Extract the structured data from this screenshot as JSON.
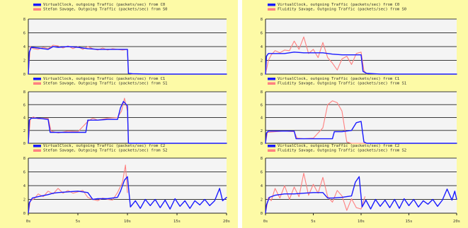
{
  "colors": {
    "panel_bg": "#fdfaa6",
    "plot_bg": "#f4f4f4",
    "blue": "#1a1aff",
    "red": "#ff8080"
  },
  "x_ticks": [
    "0s",
    "5s",
    "10s",
    "15s",
    "20s"
  ],
  "y_ticks": [
    "0",
    "2",
    "4",
    "6",
    "8"
  ],
  "chart_data": [
    {
      "type": "line",
      "xlim": [
        0,
        20
      ],
      "ylim": [
        0,
        8
      ],
      "legend": [
        "VirtualClock, outgoing Traffic (packets/sec) from C0",
        "Stefan Savage, Outgoing Traffic (packets/sec) from S0"
      ],
      "series": [
        {
          "name": "VirtualClock, outgoing Traffic (packets/sec) from C0",
          "color": "#1a1aff",
          "x": [
            0,
            0.1,
            0.3,
            1,
            2,
            2.5,
            3,
            4,
            5,
            6,
            7,
            8,
            9,
            10,
            10.1,
            10.5,
            12,
            14,
            16,
            18,
            20
          ],
          "y": [
            0,
            3.2,
            3.9,
            3.8,
            3.6,
            4.0,
            3.9,
            4.0,
            3.9,
            3.7,
            3.6,
            3.6,
            3.6,
            3.6,
            0.1,
            0.05,
            0,
            0,
            0,
            0,
            0
          ]
        },
        {
          "name": "Stefan Savage, Outgoing Traffic (packets/sec) from S0",
          "color": "#ff8080",
          "x": [
            0,
            0.2,
            0.5,
            1,
            1.5,
            2,
            2.5,
            3,
            3.5,
            4,
            4.5,
            5,
            5.5,
            6,
            6.5,
            7,
            7.5,
            8,
            8.5,
            9,
            9.5,
            10,
            10.1,
            10.5,
            11
          ],
          "y": [
            0,
            4.0,
            3.7,
            3.6,
            3.9,
            3.7,
            4.2,
            4.1,
            3.8,
            4.1,
            3.7,
            4.0,
            3.6,
            4.0,
            3.7,
            3.5,
            3.8,
            3.5,
            3.7,
            3.6,
            3.5,
            3.6,
            0.1,
            0,
            0
          ]
        }
      ]
    },
    {
      "type": "line",
      "xlim": [
        0,
        20
      ],
      "ylim": [
        0,
        8
      ],
      "legend": [
        "VirtualClock, outgoing Traffic (packets/sec) from C1",
        "Stefan Savage, Outgoing Traffic (packets/sec) from S1"
      ],
      "series": [
        {
          "name": "VirtualClock, outgoing Traffic (packets/sec) from C1",
          "color": "#1a1aff",
          "x": [
            0,
            0.1,
            0.3,
            1,
            2,
            2.2,
            3,
            4,
            5,
            5.8,
            6,
            7,
            8,
            9,
            9.3,
            9.6,
            10,
            10.1,
            12,
            14,
            16,
            18,
            20
          ],
          "y": [
            0,
            3.6,
            3.9,
            3.9,
            3.7,
            1.7,
            1.7,
            1.7,
            1.7,
            1.7,
            3.6,
            3.6,
            3.7,
            3.7,
            5.5,
            6.5,
            5.8,
            0,
            0,
            0,
            0,
            0,
            0
          ]
        },
        {
          "name": "Stefan Savage, Outgoing Traffic (packets/sec) from S1",
          "color": "#ff8080",
          "x": [
            0,
            0.2,
            0.5,
            1,
            2,
            2.3,
            3,
            4,
            5,
            6,
            6.5,
            7,
            8,
            9,
            9.4,
            9.7,
            10,
            10.1,
            12,
            14,
            16,
            18,
            20
          ],
          "y": [
            0,
            3.7,
            4.1,
            3.8,
            3.9,
            1.9,
            1.6,
            1.9,
            1.8,
            3.4,
            3.9,
            3.6,
            3.9,
            4.0,
            5.0,
            7.0,
            5.0,
            0,
            0,
            0,
            0,
            0,
            0
          ]
        }
      ]
    },
    {
      "type": "line",
      "xlim": [
        0,
        20
      ],
      "ylim": [
        0,
        8
      ],
      "legend": [
        "VirtualClock, outgoing Traffic (packets/sec) from C2",
        "Stefan Savage, Outgoing Traffic (packets/sec) from S2"
      ],
      "series": [
        {
          "name": "VirtualClock, outgoing Traffic (packets/sec) from C2",
          "color": "#1a1aff",
          "x": [
            0,
            0.1,
            0.4,
            1,
            2,
            2.5,
            3,
            4,
            5,
            6,
            6.5,
            7,
            8,
            9,
            9.3,
            9.7,
            10,
            10.3,
            10.8,
            11.3,
            11.8,
            12.3,
            12.8,
            13.3,
            13.8,
            14.3,
            14.8,
            15.3,
            15.8,
            16.3,
            16.8,
            17.3,
            17.8,
            18.3,
            18.8,
            19.3,
            19.6,
            20
          ],
          "y": [
            0,
            1.5,
            2.2,
            2.4,
            2.7,
            2.9,
            3.0,
            3.1,
            3.2,
            3.0,
            2.0,
            2.1,
            2.1,
            2.3,
            3.2,
            4.8,
            5.3,
            0.9,
            1.8,
            0.7,
            2.0,
            1.1,
            2.0,
            0.8,
            1.9,
            0.6,
            2.1,
            1.0,
            1.8,
            0.7,
            1.8,
            1.2,
            2.0,
            1.1,
            1.8,
            3.6,
            1.8,
            2.3
          ]
        },
        {
          "name": "Stefan Savage, Outgoing Traffic (packets/sec) from S2",
          "color": "#ff8080",
          "x": [
            0,
            0.2,
            0.6,
            1,
            1.5,
            2,
            2.5,
            3,
            3.5,
            4,
            4.5,
            5,
            5.5,
            6,
            6.5,
            7,
            7.5,
            8,
            8.5,
            9,
            9.5,
            9.8,
            10
          ],
          "y": [
            0,
            1.8,
            2.1,
            2.8,
            2.4,
            3.2,
            2.8,
            3.6,
            2.9,
            3.3,
            2.9,
            3.1,
            3.3,
            2.3,
            2.0,
            1.8,
            2.2,
            2.0,
            1.9,
            3.0,
            4.5,
            7.0,
            3.0
          ]
        }
      ]
    },
    {
      "type": "line",
      "xlim": [
        0,
        20
      ],
      "ylim": [
        0,
        8
      ],
      "legend": [
        "VirtualClock, outgoing Traffic (packets/sec) from C0",
        "Fluidity Savage, Outgoing Traffic (packets/sec) from S0"
      ],
      "series": [
        {
          "name": "VirtualClock, outgoing Traffic (packets/sec) from C0",
          "color": "#1a1aff",
          "x": [
            0,
            0.1,
            0.3,
            1,
            2,
            3,
            4,
            5,
            6,
            7,
            8,
            9,
            9.5,
            10,
            10.2,
            10.6,
            12,
            14,
            16,
            18,
            20
          ],
          "y": [
            0,
            2.6,
            3.0,
            3.0,
            3.0,
            3.2,
            3.1,
            3.1,
            3.1,
            2.9,
            2.8,
            2.8,
            2.8,
            2.8,
            0.4,
            0.1,
            0,
            0,
            0,
            0,
            0
          ]
        },
        {
          "name": "Fluidity Savage, Outgoing Traffic (packets/sec) from S0",
          "color": "#ff8080",
          "x": [
            0,
            0.3,
            0.6,
            1,
            1.5,
            2,
            2.5,
            3,
            3.5,
            4,
            4.5,
            5,
            5.5,
            6,
            6.5,
            7,
            7.5,
            8,
            8.5,
            9,
            9.5,
            10,
            10.3,
            10.6
          ],
          "y": [
            0,
            2.0,
            2.8,
            3.4,
            3.1,
            3.5,
            3.4,
            4.8,
            3.6,
            5.4,
            3.0,
            3.6,
            2.4,
            4.6,
            2.4,
            1.6,
            0.6,
            2.2,
            2.6,
            1.4,
            3.0,
            3.2,
            0.5,
            0
          ]
        }
      ]
    },
    {
      "type": "line",
      "xlim": [
        0,
        20
      ],
      "ylim": [
        0,
        8
      ],
      "legend": [
        "VirtualClock, outgoing Traffic (packets/sec) from C1",
        "Fluidity Savage, Outgoing Traffic (packets/sec) from S1"
      ],
      "series": [
        {
          "name": "VirtualClock, outgoing Traffic (packets/sec) from C1",
          "color": "#1a1aff",
          "x": [
            0,
            0.1,
            0.3,
            1,
            2,
            3,
            3.2,
            4,
            5,
            6,
            7,
            7.2,
            8,
            9,
            9.5,
            10,
            10.3,
            10.6,
            12,
            14,
            16,
            18,
            20
          ],
          "y": [
            0,
            1.6,
            1.9,
            1.9,
            1.9,
            1.9,
            0.7,
            0.7,
            0.7,
            0.7,
            0.7,
            1.8,
            1.8,
            2.0,
            3.2,
            3.4,
            0.2,
            0,
            0,
            0,
            0,
            0,
            0
          ]
        },
        {
          "name": "Fluidity Savage, Outgoing Traffic (packets/sec) from S1",
          "color": "#ff8080",
          "x": [
            0,
            0.2,
            1,
            2,
            3,
            3.3,
            4,
            5,
            6,
            6.5,
            7,
            7.5,
            8,
            8.5,
            9,
            10,
            12,
            14,
            16,
            18,
            20
          ],
          "y": [
            0,
            1.7,
            1.8,
            1.9,
            1.8,
            0.8,
            0.7,
            0.8,
            2.4,
            6.0,
            6.6,
            6.3,
            5.0,
            0.2,
            0,
            0,
            0,
            0,
            0,
            0,
            0
          ]
        }
      ]
    },
    {
      "type": "line",
      "xlim": [
        0,
        20
      ],
      "ylim": [
        0,
        8
      ],
      "legend": [
        "VirtualClock, outgoing Traffic (packets/sec) from C2",
        "Fluidity Savage, Outgoing Traffic (packets/sec) from S2"
      ],
      "series": [
        {
          "name": "VirtualClock, outgoing Traffic (packets/sec) from C2",
          "color": "#1a1aff",
          "x": [
            0,
            0.1,
            0.4,
            1,
            2,
            3,
            4,
            5,
            6,
            6.5,
            7,
            8,
            9,
            9.4,
            9.8,
            10.1,
            10.5,
            11,
            11.5,
            12,
            12.5,
            13,
            13.5,
            14,
            14.5,
            15,
            15.5,
            16,
            16.5,
            17,
            17.5,
            18,
            18.5,
            19,
            19.5,
            19.8,
            20
          ],
          "y": [
            0,
            1.2,
            2.3,
            2.6,
            2.8,
            2.8,
            2.9,
            3.0,
            3.0,
            2.2,
            2.2,
            2.3,
            2.5,
            4.5,
            5.3,
            0.9,
            1.9,
            0.6,
            2.0,
            1.0,
            1.9,
            0.8,
            2.0,
            0.7,
            2.1,
            1.1,
            2.0,
            0.9,
            1.8,
            1.3,
            2.0,
            1.0,
            1.9,
            3.5,
            1.9,
            3.2,
            2.0
          ]
        },
        {
          "name": "Fluidity Savage, Outgoing Traffic (packets/sec) from S2",
          "color": "#ff8080",
          "x": [
            0,
            0.3,
            0.6,
            1,
            1.5,
            2,
            2.5,
            3,
            3.5,
            4,
            4.5,
            5,
            5.5,
            6,
            6.5,
            7,
            7.5,
            8,
            8.5,
            9,
            9.5,
            10,
            10.4
          ],
          "y": [
            0,
            2.3,
            1.8,
            3.6,
            2.2,
            4.0,
            2.0,
            3.8,
            2.4,
            5.8,
            2.6,
            4.2,
            2.9,
            5.2,
            2.4,
            1.6,
            3.3,
            2.5,
            0.4,
            2.1,
            0.8,
            0.6,
            2.4
          ]
        }
      ]
    }
  ]
}
